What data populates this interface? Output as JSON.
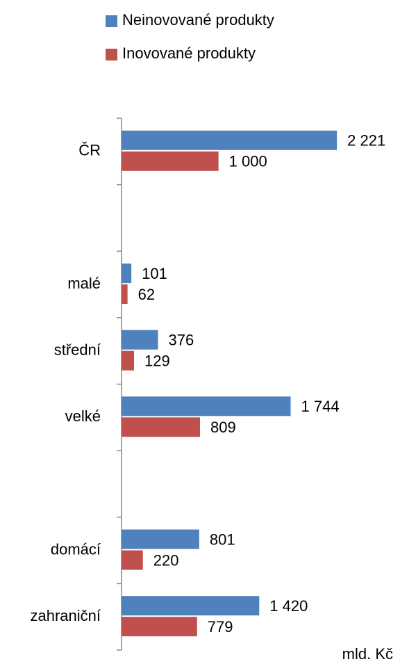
{
  "chart_data": {
    "type": "bar",
    "orientation": "horizontal",
    "categories": [
      "ČR",
      null,
      "malé",
      "střední",
      "velké",
      null,
      "domácí",
      "zahraniční"
    ],
    "series": [
      {
        "name": "Neinovované produkty",
        "color": "#4f81bd",
        "values": [
          2221,
          null,
          101,
          376,
          1744,
          null,
          801,
          1420
        ],
        "value_labels": [
          "2 221",
          null,
          "101",
          "376",
          "1 744",
          null,
          "801",
          "1 420"
        ]
      },
      {
        "name": "Inovované produkty",
        "color": "#c0504d",
        "values": [
          1000,
          null,
          62,
          129,
          809,
          null,
          220,
          779
        ],
        "value_labels": [
          "1 000",
          null,
          "62",
          "129",
          "809",
          null,
          "220",
          "779"
        ]
      }
    ],
    "unit": "mld. Kč",
    "xlim": [
      0,
      2800
    ]
  }
}
